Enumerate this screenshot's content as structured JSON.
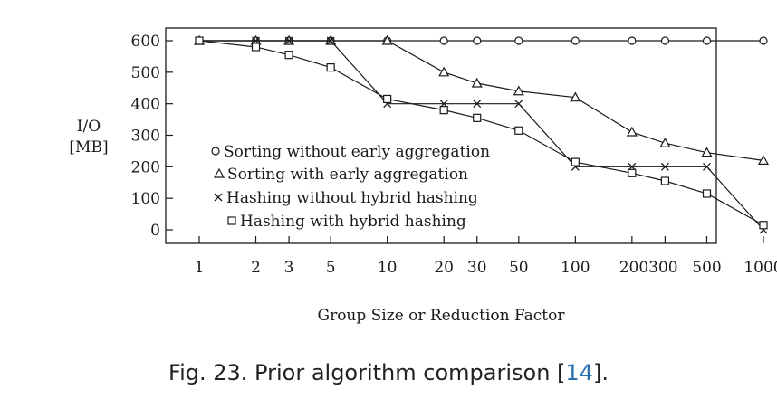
{
  "chart_data": {
    "type": "line",
    "x_scale": "log",
    "x": [
      1,
      2,
      3,
      5,
      10,
      20,
      30,
      50,
      100,
      200,
      300,
      500,
      1000
    ],
    "xtick_labels": [
      "1",
      "2",
      "3",
      "5",
      "10",
      "20",
      "30",
      "50",
      "100",
      "200300",
      "500",
      "1000"
    ],
    "xlabel": "Group Size or Reduction Factor",
    "ylabel_lines": [
      "I/O",
      "[MB]"
    ],
    "ylim": [
      0,
      600
    ],
    "yticks": [
      0,
      100,
      200,
      300,
      400,
      500,
      600
    ],
    "grid": false,
    "legend_position": "bottom-center (inside plot)",
    "series": [
      {
        "name": "Sorting without early aggregation",
        "marker": "circle",
        "x": [
          1,
          2,
          3,
          5,
          10,
          20,
          30,
          50,
          100,
          200,
          300,
          500,
          1000
        ],
        "values": [
          600,
          600,
          600,
          600,
          600,
          600,
          600,
          600,
          600,
          600,
          600,
          600,
          600
        ]
      },
      {
        "name": "Sorting with early aggregation",
        "marker": "triangle",
        "x": [
          1,
          2,
          3,
          5,
          10,
          20,
          30,
          50,
          100,
          200,
          300,
          500,
          1000
        ],
        "values": [
          600,
          600,
          600,
          600,
          600,
          500,
          465,
          440,
          420,
          310,
          275,
          245,
          220
        ]
      },
      {
        "name": "Hashing without hybrid hashing",
        "marker": "x",
        "x": [
          1,
          2,
          3,
          5,
          10,
          20,
          30,
          50,
          100,
          200,
          300,
          500,
          1000
        ],
        "values": [
          600,
          600,
          600,
          600,
          400,
          400,
          400,
          400,
          200,
          200,
          200,
          200,
          0
        ]
      },
      {
        "name": "Hashing with hybrid hashing",
        "marker": "square",
        "x": [
          1,
          2,
          3,
          5,
          10,
          20,
          30,
          50,
          100,
          200,
          300,
          500,
          1000
        ],
        "values": [
          600,
          580,
          555,
          515,
          415,
          380,
          355,
          315,
          215,
          180,
          155,
          115,
          15
        ]
      }
    ],
    "legend_labels": [
      "Sorting without early aggregation",
      "Sorting with early aggregation",
      "Hashing without hybrid hashing",
      "Hashing with hybrid hashing"
    ]
  },
  "caption": {
    "prefix": "Fig. 23.  Prior algorithm comparison [",
    "ref": "14",
    "suffix": "]."
  }
}
